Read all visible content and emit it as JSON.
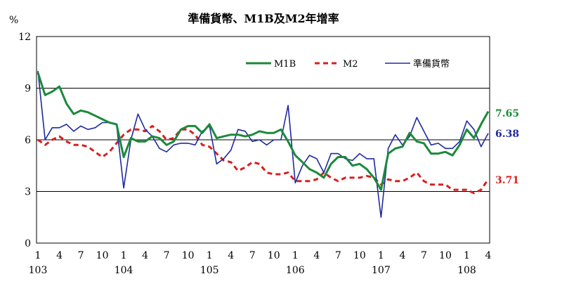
{
  "chart_data": {
    "type": "line",
    "title": "準備貨幣、M1B及M2年增率",
    "ylabel": "%",
    "xlabel": "",
    "ylim": [
      0,
      12
    ],
    "yticks": [
      "0",
      "3",
      "6",
      "9",
      "12"
    ],
    "grid": "horizontal",
    "legend_placement": "top-right",
    "x": [
      "103-01",
      "103-02",
      "103-03",
      "103-04",
      "103-05",
      "103-06",
      "103-07",
      "103-08",
      "103-09",
      "103-10",
      "103-11",
      "103-12",
      "104-01",
      "104-02",
      "104-03",
      "104-04",
      "104-05",
      "104-06",
      "104-07",
      "104-08",
      "104-09",
      "104-10",
      "104-11",
      "104-12",
      "105-01",
      "105-02",
      "105-03",
      "105-04",
      "105-05",
      "105-06",
      "105-07",
      "105-08",
      "105-09",
      "105-10",
      "105-11",
      "105-12",
      "106-01",
      "106-02",
      "106-03",
      "106-04",
      "106-05",
      "106-06",
      "106-07",
      "106-08",
      "106-09",
      "106-10",
      "106-11",
      "106-12",
      "107-01",
      "107-02",
      "107-03",
      "107-04",
      "107-05",
      "107-06",
      "107-07",
      "107-08",
      "107-09",
      "107-10",
      "107-11",
      "107-12",
      "108-01",
      "108-02",
      "108-03",
      "108-04"
    ],
    "month_tick_labels": [
      "1",
      "4",
      "7",
      "10",
      "1",
      "4",
      "7",
      "10",
      "1",
      "4",
      "7",
      "10",
      "1",
      "4",
      "7",
      "10",
      "1",
      "4",
      "7",
      "10",
      "1",
      "4"
    ],
    "year_tick_labels": [
      "103",
      "104",
      "105",
      "106",
      "107",
      "108"
    ],
    "series": [
      {
        "name": "M1B",
        "color": "#1a8a3a",
        "style": "solid",
        "values": [
          9.9,
          8.6,
          8.8,
          9.1,
          8.1,
          7.5,
          7.7,
          7.6,
          7.4,
          7.2,
          7.0,
          6.9,
          5.0,
          6.1,
          5.9,
          5.9,
          6.2,
          6.1,
          5.7,
          5.9,
          6.6,
          6.8,
          6.8,
          6.4,
          6.9,
          6.1,
          6.2,
          6.3,
          6.3,
          6.2,
          6.3,
          6.5,
          6.4,
          6.4,
          6.6,
          5.9,
          5.1,
          4.7,
          4.3,
          4.1,
          3.8,
          4.6,
          5.0,
          5.0,
          4.5,
          4.6,
          4.3,
          3.8,
          3.1,
          5.2,
          5.5,
          5.6,
          6.4,
          5.9,
          5.8,
          5.2,
          5.2,
          5.3,
          5.1,
          5.7,
          6.6,
          6.1,
          6.9,
          7.65
        ],
        "end_label": "7.65"
      },
      {
        "name": "M2",
        "color": "#d62020",
        "style": "dashed",
        "values": [
          6.0,
          5.7,
          6.0,
          6.2,
          5.9,
          5.7,
          5.7,
          5.6,
          5.3,
          5.0,
          5.3,
          5.8,
          6.3,
          6.6,
          6.6,
          6.5,
          6.8,
          6.5,
          6.0,
          6.1,
          6.6,
          6.6,
          6.3,
          5.7,
          5.6,
          5.2,
          4.8,
          4.7,
          4.2,
          4.4,
          4.7,
          4.6,
          4.1,
          4.0,
          4.0,
          4.1,
          3.6,
          3.6,
          3.6,
          3.7,
          4.1,
          3.8,
          3.6,
          3.8,
          3.8,
          3.8,
          3.9,
          3.8,
          3.4,
          3.7,
          3.6,
          3.6,
          3.8,
          4.1,
          3.6,
          3.4,
          3.4,
          3.4,
          3.1,
          3.1,
          3.1,
          2.9,
          3.1,
          3.71
        ],
        "end_label": "3.71"
      },
      {
        "name": "準備貨幣",
        "color": "#1e2a9e",
        "style": "solid",
        "values": [
          10.0,
          6.0,
          6.7,
          6.7,
          6.9,
          6.5,
          6.8,
          6.6,
          6.7,
          7.0,
          7.0,
          6.9,
          3.2,
          6.0,
          7.5,
          6.6,
          6.2,
          5.5,
          5.3,
          5.7,
          5.8,
          5.8,
          5.7,
          6.5,
          6.8,
          4.6,
          4.9,
          5.4,
          6.6,
          6.5,
          5.9,
          6.0,
          5.7,
          6.0,
          6.0,
          8.0,
          3.5,
          4.5,
          5.1,
          4.9,
          4.1,
          5.2,
          5.2,
          4.9,
          4.8,
          5.2,
          4.9,
          4.9,
          1.5,
          5.5,
          6.3,
          5.7,
          6.2,
          7.3,
          6.5,
          5.7,
          5.8,
          5.5,
          5.5,
          5.9,
          7.1,
          6.6,
          5.6,
          6.38
        ],
        "end_label": "6.38"
      }
    ]
  }
}
